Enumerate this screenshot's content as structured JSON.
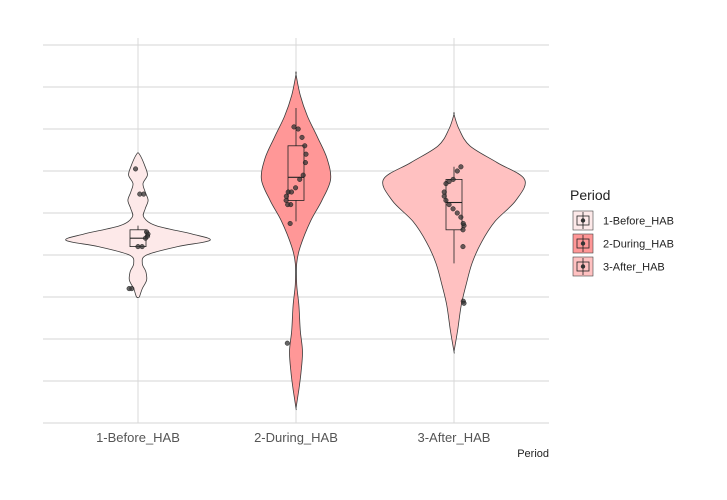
{
  "chart_data": {
    "type": "violin",
    "title": "",
    "xlabel": "Period",
    "ylabel": "",
    "categories": [
      "1-Before_HAB",
      "2-During_HAB",
      "3-After_HAB"
    ],
    "ylim": [
      0,
      9
    ],
    "y_tick_labels_shown": false,
    "grid": true,
    "legend": {
      "title": "Period",
      "position": "right",
      "entries": [
        "1-Before_HAB",
        "2-During_HAB",
        "3-After_HAB"
      ]
    },
    "colors": {
      "1-Before_HAB": "#fde9e9",
      "2-During_HAB": "#ff9797",
      "3-After_HAB": "#ffc1c1"
    },
    "series": [
      {
        "category": "1-Before_HAB",
        "box": {
          "whisker_low": 4.2,
          "q1": 4.2,
          "median": 4.4,
          "q3": 4.6,
          "whisker_high": 4.7
        },
        "density": [
          [
            3.0,
            0.02
          ],
          [
            3.2,
            0.06
          ],
          [
            3.4,
            0.12
          ],
          [
            3.6,
            0.11
          ],
          [
            3.8,
            0.06
          ],
          [
            4.0,
            0.12
          ],
          [
            4.2,
            0.55
          ],
          [
            4.35,
            1.0
          ],
          [
            4.5,
            0.75
          ],
          [
            4.7,
            0.25
          ],
          [
            4.9,
            0.08
          ],
          [
            5.1,
            0.1
          ],
          [
            5.3,
            0.14
          ],
          [
            5.5,
            0.1
          ],
          [
            5.7,
            0.07
          ],
          [
            5.9,
            0.13
          ],
          [
            6.1,
            0.1
          ],
          [
            6.4,
            0.02
          ]
        ],
        "points": [
          4.2,
          4.2,
          4.4,
          4.45,
          4.5,
          4.55,
          5.45,
          5.45,
          6.05,
          3.2,
          3.2
        ]
      },
      {
        "category": "2-During_HAB",
        "box": {
          "whisker_low": 4.8,
          "q1": 5.3,
          "median": 5.85,
          "q3": 6.6,
          "whisker_high": 7.5
        },
        "density": [
          [
            0.35,
            0.0
          ],
          [
            0.8,
            0.04
          ],
          [
            1.2,
            0.07
          ],
          [
            1.7,
            0.09
          ],
          [
            2.2,
            0.06
          ],
          [
            2.8,
            0.04
          ],
          [
            3.3,
            0.01
          ],
          [
            3.8,
            0.01
          ],
          [
            4.2,
            0.06
          ],
          [
            4.8,
            0.2
          ],
          [
            5.3,
            0.36
          ],
          [
            5.8,
            0.48
          ],
          [
            6.3,
            0.43
          ],
          [
            6.8,
            0.3
          ],
          [
            7.3,
            0.16
          ],
          [
            7.8,
            0.06
          ],
          [
            8.3,
            0.0
          ]
        ],
        "points": [
          5.2,
          5.2,
          5.3,
          5.4,
          5.5,
          5.5,
          5.6,
          5.8,
          5.9,
          6.2,
          6.4,
          6.6,
          6.8,
          7.0,
          7.05,
          4.75,
          1.9
        ]
      },
      {
        "category": "3-After_HAB",
        "box": {
          "whisker_low": 3.8,
          "q1": 4.6,
          "median": 5.25,
          "q3": 5.8,
          "whisker_high": 6.1
        },
        "density": [
          [
            1.7,
            0.0
          ],
          [
            2.2,
            0.05
          ],
          [
            2.8,
            0.1
          ],
          [
            3.3,
            0.17
          ],
          [
            3.8,
            0.25
          ],
          [
            4.3,
            0.38
          ],
          [
            4.8,
            0.57
          ],
          [
            5.3,
            0.86
          ],
          [
            5.8,
            0.98
          ],
          [
            6.2,
            0.6
          ],
          [
            6.6,
            0.22
          ],
          [
            7.0,
            0.07
          ],
          [
            7.35,
            0.0
          ]
        ],
        "points": [
          4.6,
          4.7,
          4.75,
          4.9,
          5.0,
          5.1,
          5.2,
          5.3,
          5.4,
          5.5,
          5.7,
          5.75,
          5.8,
          6.0,
          6.1,
          2.9,
          2.85,
          4.2
        ]
      }
    ]
  }
}
